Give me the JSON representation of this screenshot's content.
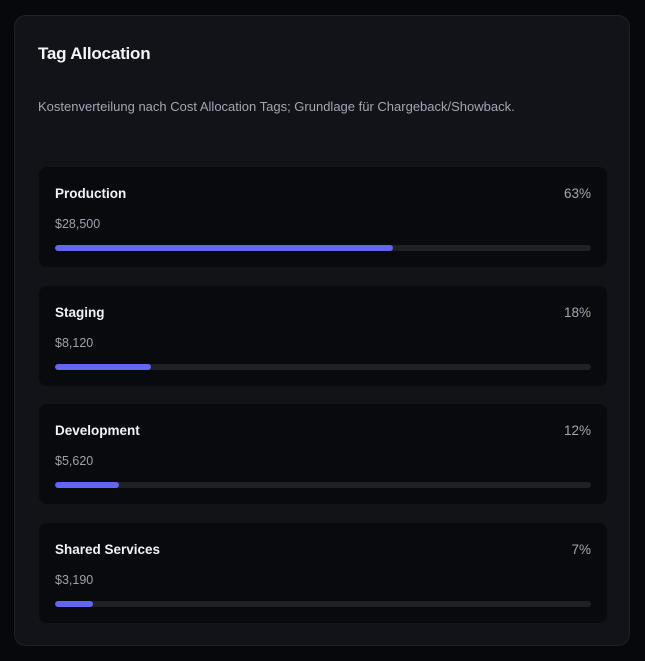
{
  "panel": {
    "title": "Tag Allocation",
    "description": "Kostenverteilung nach Cost Allocation Tags; Grundlage für Chargeback/Showback."
  },
  "colors": {
    "accent": "#6366f1",
    "track": "#1f2127",
    "card_background": "#111318",
    "item_background": "#090a0e"
  },
  "allocations": [
    {
      "name": "Production",
      "amount": "$28,500",
      "percent_label": "63%",
      "percent": 63
    },
    {
      "name": "Staging",
      "amount": "$8,120",
      "percent_label": "18%",
      "percent": 18
    },
    {
      "name": "Development",
      "amount": "$5,620",
      "percent_label": "12%",
      "percent": 12
    },
    {
      "name": "Shared Services",
      "amount": "$3,190",
      "percent_label": "7%",
      "percent": 7
    }
  ]
}
